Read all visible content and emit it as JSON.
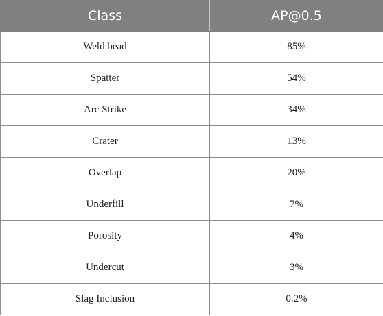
{
  "table": {
    "headers": [
      "Class",
      "AP@0.5"
    ],
    "rows": [
      {
        "class": "Weld bead",
        "ap": "85%"
      },
      {
        "class": "Spatter",
        "ap": "54%"
      },
      {
        "class": "Arc Strike",
        "ap": "34%"
      },
      {
        "class": "Crater",
        "ap": "13%"
      },
      {
        "class": "Overlap",
        "ap": "20%"
      },
      {
        "class": "Underfill",
        "ap": "7%"
      },
      {
        "class": "Porosity",
        "ap": "4%"
      },
      {
        "class": "Undercut",
        "ap": "3%"
      },
      {
        "class": "Slag Inclusion",
        "ap": "0.2%"
      }
    ]
  },
  "colors": {
    "header_background": "#808080",
    "header_text": "#ffffff",
    "border": "#8c8c8c"
  }
}
